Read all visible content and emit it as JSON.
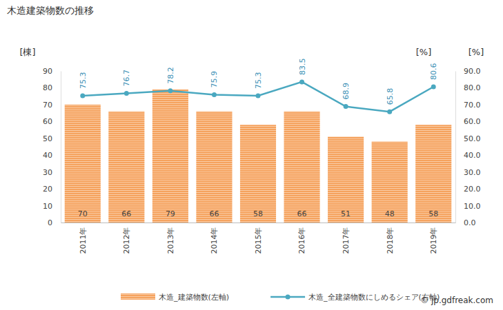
{
  "chart_data": {
    "type": "bar",
    "title": "木造建築物数の推移",
    "y_label": "[棟]",
    "y2_label": "[%]",
    "annotations": [
      "[%]",
      "© jp.gdfreak.com"
    ],
    "categories": [
      "2011年",
      "2012年",
      "2013年",
      "2014年",
      "2015年",
      "2016年",
      "2017年",
      "2018年",
      "2019年"
    ],
    "series": [
      {
        "name": "木造_建築物数(左軸)",
        "type": "bar",
        "color": "#f5a25d",
        "values": [
          70,
          66,
          79,
          66,
          58,
          66,
          51,
          48,
          58
        ]
      },
      {
        "name": "木造_全建築物数にしめるシェア(右軸)",
        "type": "line",
        "axis": "y2",
        "color": "#4aa8c0",
        "marker": "circle",
        "values": [
          75.3,
          76.7,
          78.2,
          75.9,
          75.3,
          83.5,
          68.9,
          65.8,
          80.6
        ]
      }
    ],
    "ylim": [
      0,
      90
    ],
    "yticks": [
      0,
      10,
      20,
      30,
      40,
      50,
      60,
      70,
      80,
      90
    ],
    "y2lim": [
      0,
      90
    ],
    "y2ticks": [
      {
        "value": 0,
        "label": "0.0"
      },
      {
        "value": 10,
        "label": "10.0"
      },
      {
        "value": 20,
        "label": "20.0"
      },
      {
        "value": 30,
        "label": "30.0"
      },
      {
        "value": 40,
        "label": "40.0"
      },
      {
        "value": 50,
        "label": "50.0"
      },
      {
        "value": 60,
        "label": "60.0"
      },
      {
        "value": 70,
        "label": "70.0"
      },
      {
        "value": 80,
        "label": "80.0"
      },
      {
        "value": 90,
        "label": "90.0"
      }
    ],
    "grid": false,
    "legend": "bottom",
    "data_labels": true
  }
}
